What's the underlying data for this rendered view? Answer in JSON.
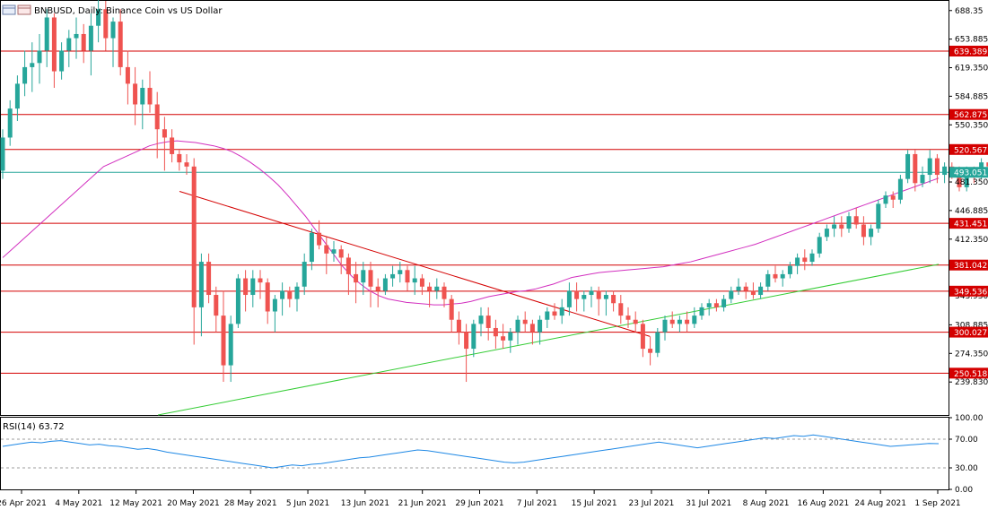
{
  "header": {
    "symbol_info": "BNBUSD, Daily:  Binance Coin vs US Dollar"
  },
  "rsi_panel": {
    "label": "RSI(14) 63.72"
  },
  "colors": {
    "bull": "#26a69a",
    "bear": "#ef5350",
    "level_line": "#d40000",
    "ma": "#d22fbf",
    "trend_up": "#33cc33",
    "trend_down": "#d40000",
    "current_price_line": "#26a69a",
    "rsi": "#1e88e5"
  },
  "chart_data": [
    {
      "type": "candlestick",
      "title": "BNBUSD, Daily:  Binance Coin vs US Dollar",
      "ylim": [
        200,
        700
      ],
      "x_tick_labels": [
        "26 Apr 2021",
        "4 May 2021",
        "12 May 2021",
        "20 May 2021",
        "28 May 2021",
        "5 Jun 2021",
        "13 Jun 2021",
        "21 Jun 2021",
        "29 Jun 2021",
        "7 Jul 2021",
        "15 Jul 2021",
        "23 Jul 2021",
        "31 Jul 2021",
        "8 Aug 2021",
        "16 Aug 2021",
        "24 Aug 2021",
        "1 Sep 2021"
      ],
      "y_tick_labels": [
        "688.35",
        "653.885",
        "619.350",
        "584.885",
        "550.350",
        "481.350",
        "446.885",
        "412.350",
        "343.930",
        "308.885",
        "274.350",
        "239.830"
      ],
      "horizontal_levels": [
        "639.389",
        "562.875",
        "520.567",
        "431.451",
        "381.042",
        "349.536",
        "300.027",
        "250.518"
      ],
      "current_price": "493.051",
      "candles": [
        [
          495,
          545,
          485,
          535
        ],
        [
          535,
          580,
          525,
          570
        ],
        [
          570,
          610,
          555,
          600
        ],
        [
          600,
          640,
          585,
          620
        ],
        [
          620,
          650,
          590,
          625
        ],
        [
          625,
          660,
          600,
          640
        ],
        [
          640,
          690,
          620,
          680
        ],
        [
          680,
          685,
          595,
          615
        ],
        [
          615,
          650,
          605,
          640
        ],
        [
          640,
          665,
          620,
          655
        ],
        [
          655,
          680,
          630,
          660
        ],
        [
          660,
          672,
          625,
          640
        ],
        [
          640,
          685,
          610,
          670
        ],
        [
          670,
          705,
          650,
          690
        ],
        [
          690,
          700,
          640,
          655
        ],
        [
          655,
          680,
          620,
          675
        ],
        [
          675,
          690,
          610,
          620
        ],
        [
          620,
          640,
          575,
          600
        ],
        [
          600,
          620,
          550,
          575
        ],
        [
          575,
          605,
          545,
          595
        ],
        [
          595,
          615,
          565,
          575
        ],
        [
          575,
          590,
          510,
          545
        ],
        [
          545,
          560,
          495,
          535
        ],
        [
          535,
          545,
          505,
          515
        ],
        [
          515,
          520,
          495,
          505
        ],
        [
          505,
          515,
          490,
          500
        ],
        [
          500,
          510,
          285,
          330
        ],
        [
          330,
          395,
          295,
          385
        ],
        [
          385,
          395,
          335,
          345
        ],
        [
          345,
          355,
          300,
          320
        ],
        [
          320,
          350,
          240,
          260
        ],
        [
          260,
          320,
          240,
          310
        ],
        [
          310,
          370,
          305,
          365
        ],
        [
          365,
          375,
          325,
          345
        ],
        [
          345,
          375,
          330,
          365
        ],
        [
          365,
          375,
          340,
          360
        ],
        [
          360,
          365,
          310,
          325
        ],
        [
          325,
          345,
          300,
          340
        ],
        [
          340,
          360,
          320,
          350
        ],
        [
          350,
          355,
          330,
          340
        ],
        [
          340,
          360,
          325,
          355
        ],
        [
          355,
          395,
          345,
          385
        ],
        [
          385,
          425,
          375,
          420
        ],
        [
          420,
          435,
          400,
          405
        ],
        [
          405,
          415,
          370,
          395
        ],
        [
          395,
          410,
          385,
          400
        ],
        [
          400,
          405,
          370,
          390
        ],
        [
          390,
          395,
          345,
          370
        ],
        [
          370,
          385,
          335,
          360
        ],
        [
          360,
          385,
          345,
          375
        ],
        [
          375,
          385,
          330,
          355
        ],
        [
          355,
          365,
          330,
          350
        ],
        [
          350,
          370,
          345,
          365
        ],
        [
          365,
          380,
          355,
          370
        ],
        [
          370,
          385,
          360,
          375
        ],
        [
          375,
          380,
          350,
          360
        ],
        [
          360,
          380,
          345,
          365
        ],
        [
          365,
          370,
          345,
          355
        ],
        [
          355,
          360,
          330,
          350
        ],
        [
          350,
          365,
          340,
          355
        ],
        [
          355,
          360,
          330,
          340
        ],
        [
          340,
          345,
          300,
          315
        ],
        [
          315,
          325,
          285,
          300
        ],
        [
          300,
          310,
          240,
          280
        ],
        [
          280,
          315,
          270,
          310
        ],
        [
          310,
          330,
          295,
          320
        ],
        [
          320,
          330,
          290,
          305
        ],
        [
          305,
          315,
          280,
          295
        ],
        [
          295,
          310,
          280,
          290
        ],
        [
          290,
          305,
          275,
          300
        ],
        [
          300,
          320,
          285,
          315
        ],
        [
          315,
          325,
          300,
          310
        ],
        [
          310,
          315,
          285,
          300
        ],
        [
          300,
          320,
          285,
          315
        ],
        [
          315,
          330,
          305,
          325
        ],
        [
          325,
          335,
          315,
          320
        ],
        [
          320,
          340,
          310,
          330
        ],
        [
          330,
          360,
          320,
          350
        ],
        [
          350,
          360,
          325,
          340
        ],
        [
          340,
          350,
          325,
          345
        ],
        [
          345,
          355,
          330,
          350
        ],
        [
          350,
          355,
          320,
          340
        ],
        [
          340,
          350,
          320,
          345
        ],
        [
          345,
          350,
          325,
          335
        ],
        [
          335,
          345,
          310,
          320
        ],
        [
          320,
          330,
          305,
          315
        ],
        [
          315,
          325,
          300,
          310
        ],
        [
          310,
          315,
          270,
          280
        ],
        [
          280,
          295,
          260,
          275
        ],
        [
          275,
          305,
          270,
          300
        ],
        [
          300,
          320,
          290,
          315
        ],
        [
          315,
          325,
          305,
          310
        ],
        [
          310,
          320,
          300,
          315
        ],
        [
          315,
          325,
          300,
          310
        ],
        [
          310,
          330,
          305,
          320
        ],
        [
          320,
          335,
          315,
          330
        ],
        [
          330,
          340,
          320,
          335
        ],
        [
          335,
          340,
          325,
          330
        ],
        [
          330,
          345,
          325,
          340
        ],
        [
          340,
          355,
          335,
          350
        ],
        [
          350,
          365,
          345,
          355
        ],
        [
          355,
          360,
          340,
          350
        ],
        [
          350,
          360,
          340,
          345
        ],
        [
          345,
          360,
          340,
          355
        ],
        [
          355,
          375,
          350,
          370
        ],
        [
          370,
          380,
          360,
          365
        ],
        [
          365,
          375,
          355,
          370
        ],
        [
          370,
          385,
          365,
          380
        ],
        [
          380,
          395,
          370,
          390
        ],
        [
          390,
          400,
          375,
          385
        ],
        [
          385,
          400,
          380,
          395
        ],
        [
          395,
          420,
          390,
          415
        ],
        [
          415,
          430,
          410,
          425
        ],
        [
          425,
          440,
          415,
          430
        ],
        [
          430,
          440,
          415,
          425
        ],
        [
          425,
          445,
          420,
          440
        ],
        [
          440,
          450,
          425,
          430
        ],
        [
          430,
          440,
          405,
          415
        ],
        [
          415,
          430,
          405,
          425
        ],
        [
          425,
          460,
          420,
          455
        ],
        [
          455,
          470,
          450,
          465
        ],
        [
          465,
          470,
          450,
          460
        ],
        [
          460,
          490,
          455,
          485
        ],
        [
          485,
          520,
          480,
          515
        ],
        [
          515,
          520,
          470,
          480
        ],
        [
          480,
          500,
          475,
          490
        ],
        [
          490,
          520,
          480,
          510
        ],
        [
          510,
          515,
          480,
          490
        ],
        [
          490,
          505,
          480,
          500
        ],
        [
          500,
          505,
          485,
          495
        ],
        [
          495,
          500,
          470,
          475
        ],
        [
          475,
          500,
          470,
          495
        ],
        [
          495,
          500,
          480,
          490
        ],
        [
          490,
          510,
          485,
          505
        ],
        [
          505,
          515,
          490,
          500
        ],
        [
          500,
          515,
          490,
          493
        ]
      ],
      "ma_values": [
        390,
        400,
        410,
        420,
        430,
        440,
        450,
        460,
        470,
        480,
        490,
        500,
        505,
        510,
        515,
        520,
        525,
        528,
        530,
        531,
        530,
        529,
        527,
        525,
        522,
        518,
        512,
        505,
        497,
        488,
        478,
        466,
        453,
        440,
        425,
        410,
        395,
        380,
        368,
        358,
        350,
        344,
        340,
        338,
        336,
        335,
        334,
        333,
        333,
        334,
        335,
        337,
        340,
        343,
        345,
        347,
        349,
        350,
        352,
        355,
        358,
        362,
        366,
        368,
        370,
        372,
        373,
        374,
        375,
        376,
        377,
        378,
        379,
        381,
        383,
        385,
        388,
        391,
        394,
        397,
        400,
        403,
        406,
        410,
        414,
        418,
        422,
        426,
        430,
        434,
        438,
        442,
        446,
        450,
        454,
        458,
        462,
        466,
        470,
        474,
        478,
        482,
        486
      ],
      "rsi": {
        "label": "RSI(14) 63.72",
        "ylim": [
          0,
          100
        ],
        "y_tick_labels": [
          "100.00",
          "70.00",
          "30.00",
          "0.00"
        ],
        "levels": [
          70,
          30
        ],
        "values": [
          60,
          62,
          64,
          66,
          65,
          67,
          68,
          66,
          64,
          62,
          63,
          61,
          60,
          58,
          56,
          57,
          55,
          52,
          50,
          48,
          46,
          44,
          42,
          40,
          38,
          36,
          34,
          32,
          30,
          32,
          34,
          33,
          35,
          36,
          38,
          40,
          42,
          44,
          45,
          47,
          49,
          51,
          53,
          55,
          54,
          52,
          50,
          48,
          46,
          44,
          42,
          40,
          38,
          37,
          38,
          40,
          42,
          44,
          46,
          48,
          50,
          52,
          54,
          56,
          58,
          60,
          62,
          64,
          66,
          64,
          62,
          60,
          58,
          60,
          62,
          64,
          66,
          68,
          70,
          72,
          71,
          73,
          75,
          74,
          76,
          74,
          72,
          70,
          68,
          66,
          64,
          62,
          60,
          61,
          62,
          63,
          64,
          63.72
        ]
      }
    }
  ]
}
